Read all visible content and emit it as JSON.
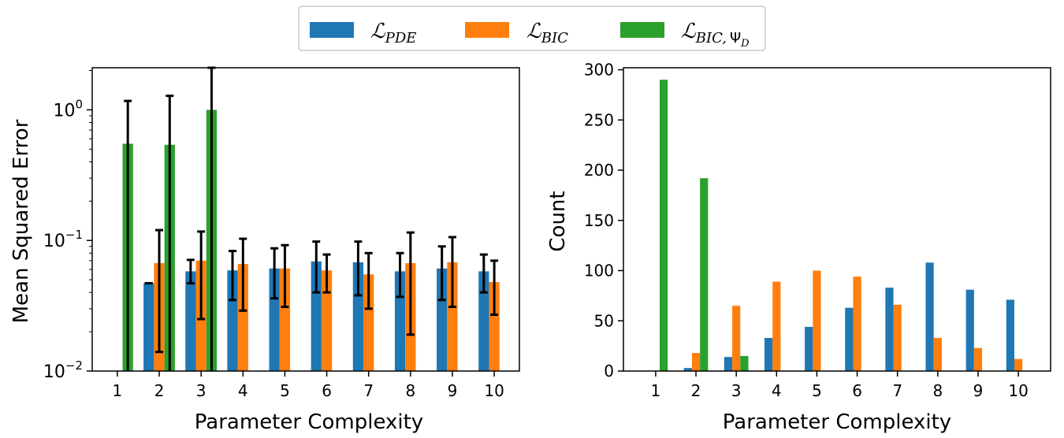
{
  "colors": {
    "pde": "#1f77b4",
    "bic": "#ff7f0e",
    "bic_psi": "#2ca02c",
    "errorbar": "#000000"
  },
  "legend": {
    "entries": [
      {
        "key": "pde",
        "symbol": "ℒ",
        "sub": "PDE"
      },
      {
        "key": "bic",
        "symbol": "ℒ",
        "sub": "BIC"
      },
      {
        "key": "bic_psi",
        "symbol": "ℒ",
        "sub": "BIC,",
        "subpsi": "Ψ",
        "subsub": "D"
      }
    ]
  },
  "chart_data": [
    {
      "type": "bar",
      "yscale": "log",
      "xlabel": "Parameter Complexity",
      "ylabel": "Mean Squared Error",
      "ylim": [
        0.01,
        2.1
      ],
      "ytick_values": [
        0.01,
        0.1,
        1
      ],
      "ytick_labels": [
        {
          "base": "10",
          "exp": "−2"
        },
        {
          "base": "10",
          "exp": "−1"
        },
        {
          "base": "10",
          "exp": "0"
        }
      ],
      "categories": [
        "1",
        "2",
        "3",
        "4",
        "5",
        "6",
        "7",
        "8",
        "9",
        "10"
      ],
      "series": [
        {
          "name": "PDE",
          "key": "pde",
          "values": [
            null,
            0.047,
            0.058,
            0.059,
            0.061,
            0.069,
            0.068,
            0.058,
            0.061,
            0.058
          ],
          "err_low": [
            null,
            0.047,
            0.047,
            0.035,
            0.036,
            0.04,
            0.038,
            0.037,
            0.035,
            0.04
          ],
          "err_high": [
            null,
            0.047,
            0.071,
            0.083,
            0.087,
            0.098,
            0.098,
            0.08,
            0.09,
            0.078
          ]
        },
        {
          "name": "BIC",
          "key": "bic",
          "values": [
            null,
            0.067,
            0.07,
            0.066,
            0.061,
            0.059,
            0.055,
            0.067,
            0.068,
            0.048
          ],
          "err_low": [
            null,
            0.014,
            0.025,
            0.029,
            0.031,
            0.04,
            0.03,
            0.019,
            0.031,
            0.027
          ],
          "err_high": [
            null,
            0.12,
            0.117,
            0.103,
            0.092,
            0.078,
            0.08,
            0.115,
            0.106,
            0.07
          ]
        },
        {
          "name": "BIC, Psi_D",
          "key": "bic_psi",
          "values": [
            0.55,
            0.54,
            1.0,
            null,
            null,
            null,
            null,
            null,
            null,
            null
          ],
          "err_low": [
            0.01,
            0.01,
            0.01,
            null,
            null,
            null,
            null,
            null,
            null,
            null
          ],
          "err_high": [
            1.17,
            1.28,
            2.1,
            null,
            null,
            null,
            null,
            null,
            null,
            null
          ]
        }
      ]
    },
    {
      "type": "bar",
      "xlabel": "Parameter Complexity",
      "ylabel": "Count",
      "ylim": [
        0,
        302
      ],
      "yticks": [
        0,
        50,
        100,
        150,
        200,
        250,
        300
      ],
      "categories": [
        "1",
        "2",
        "3",
        "4",
        "5",
        "6",
        "7",
        "8",
        "9",
        "10"
      ],
      "series": [
        {
          "name": "PDE",
          "key": "pde",
          "values": [
            0,
            3,
            14,
            33,
            44,
            63,
            83,
            108,
            81,
            71
          ]
        },
        {
          "name": "BIC",
          "key": "bic",
          "values": [
            0,
            18,
            65,
            89,
            100,
            94,
            66,
            33,
            23,
            12
          ]
        },
        {
          "name": "BIC, Psi_D",
          "key": "bic_psi",
          "values": [
            290,
            192,
            15,
            0,
            0,
            0,
            0,
            0,
            0,
            0
          ]
        }
      ]
    }
  ]
}
